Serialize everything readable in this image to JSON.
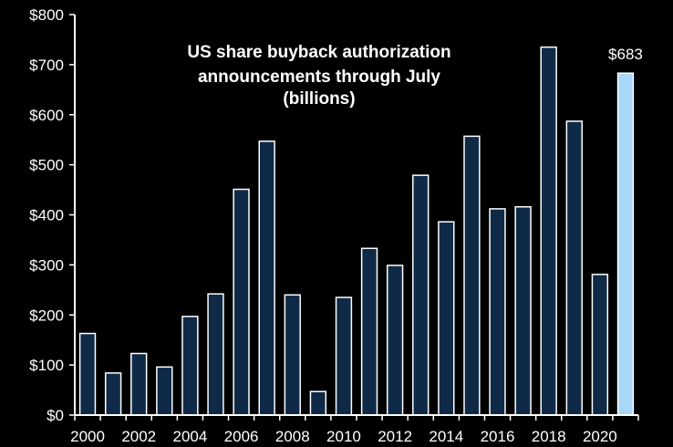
{
  "chart_data": {
    "type": "bar",
    "title": "US share buyback authorization announcements through July",
    "subtitle": "(billions)",
    "categories": [
      "2000",
      "2001",
      "2002",
      "2003",
      "2004",
      "2005",
      "2006",
      "2007",
      "2008",
      "2009",
      "2010",
      "2011",
      "2012",
      "2013",
      "2014",
      "2015",
      "2016",
      "2017",
      "2018",
      "2019",
      "2020",
      "2021"
    ],
    "values": [
      163,
      84,
      123,
      96,
      197,
      242,
      451,
      547,
      240,
      47,
      235,
      333,
      299,
      479,
      386,
      557,
      412,
      416,
      735,
      587,
      281,
      683
    ],
    "x_tick_labels": [
      "2000",
      "2002",
      "2004",
      "2006",
      "2008",
      "2010",
      "2012",
      "2014",
      "2016",
      "2018",
      "2020"
    ],
    "y_tick_labels": [
      "$0",
      "$100",
      "$200",
      "$300",
      "$400",
      "$500",
      "$600",
      "$700",
      "$800"
    ],
    "ylim": [
      0,
      800
    ],
    "y_ticks": [
      0,
      100,
      200,
      300,
      400,
      500,
      600,
      700,
      800
    ],
    "grid": false,
    "highlight_index": 21,
    "data_labels": [
      {
        "index": 21,
        "text": "$683"
      }
    ],
    "colors": {
      "background": "#000000",
      "bar": "#0f2a47",
      "bar_outline": "#ffffff",
      "highlight": "#a9d7f8",
      "axis": "#ffffff",
      "text": "#ffffff"
    }
  }
}
